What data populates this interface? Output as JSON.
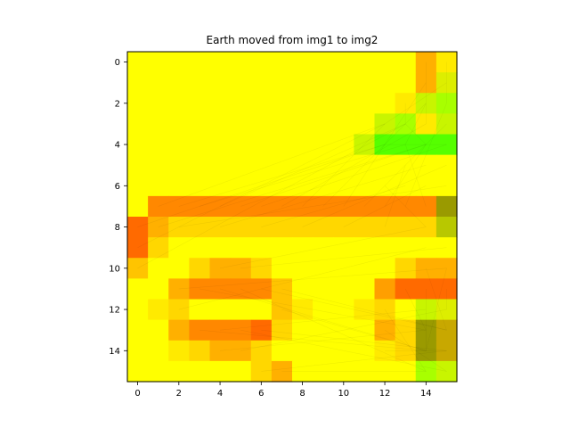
{
  "chart_data": {
    "type": "heatmap",
    "title": "Earth moved from img1 to img2",
    "xlabel": "",
    "ylabel": "",
    "rows": 16,
    "cols": 16,
    "x_ticks": [
      0,
      2,
      4,
      6,
      8,
      10,
      12,
      14
    ],
    "y_ticks": [
      0,
      2,
      4,
      6,
      8,
      10,
      12,
      14
    ],
    "x_tick_labels": [
      "0",
      "2",
      "4",
      "6",
      "8",
      "10",
      "12",
      "14"
    ],
    "y_tick_labels": [
      "0",
      "2",
      "4",
      "6",
      "8",
      "10",
      "12",
      "14"
    ],
    "xlim": [
      -0.5,
      15.5
    ],
    "ylim": [
      15.5,
      -0.5
    ],
    "grid": false,
    "legend": "none",
    "palette": {
      "Y": "#ffff00",
      "L": "#ffea00",
      "P": "#ffd700",
      "Q": "#ffc400",
      "O": "#ffb000",
      "o": "#ff9f00",
      "R": "#ff8800",
      "D": "#ff6a00",
      "g": "#ddee00",
      "h": "#c8f500",
      "G": "#a8ff00",
      "H": "#55ff00",
      "K": "#9a9a00",
      "k": "#c8a800",
      "n": "#b8c800"
    },
    "cells": [
      "YYYYYYYYYYYYYYOL",
      "YYYYYYYYYYYYYYOg",
      "YYYYYYYYYYYYYLhG",
      "YYYYYYYYYYYYhGLh",
      "YYYYYYYYYYYhHHHH",
      "YYYYYYYYYYYYYYYY",
      "YYYYYYYYYYYYYYYY",
      "YRRRRRRRRRRRRRRK",
      "DOPPPPPPPPPPPPPn",
      "DPYYYYYYYYYYYYYY",
      "QYYPOOPYYYYYYPOO",
      "YYORRRRQYYYYoDDD",
      "YLPYYYYQLYYLPYhg",
      "YYORRRDPYYYYOPKk",
      "YYLPOOPYYYYYLPKk",
      "YYYYYYPOYYYYYYGh"
    ],
    "flow_lines": [
      [
        0,
        14,
        3,
        14
      ],
      [
        1,
        14,
        4,
        12
      ],
      [
        2,
        14,
        4,
        13
      ],
      [
        3,
        13,
        4,
        14
      ],
      [
        4,
        12,
        4,
        15
      ],
      [
        0,
        15,
        2,
        15
      ],
      [
        1,
        15,
        3,
        12
      ],
      [
        2,
        13,
        3,
        13
      ],
      [
        3,
        12,
        4,
        11
      ],
      [
        7,
        1,
        3,
        12
      ],
      [
        7,
        2,
        4,
        12
      ],
      [
        7,
        3,
        4,
        13
      ],
      [
        7,
        4,
        3,
        13
      ],
      [
        7,
        5,
        4,
        14
      ],
      [
        7,
        6,
        4,
        15
      ],
      [
        7,
        7,
        3,
        14
      ],
      [
        7,
        8,
        4,
        11
      ],
      [
        7,
        9,
        2,
        14
      ],
      [
        7,
        10,
        4,
        12
      ],
      [
        7,
        11,
        3,
        15
      ],
      [
        7,
        12,
        4,
        14
      ],
      [
        7,
        13,
        2,
        15
      ],
      [
        7,
        14,
        4,
        13
      ],
      [
        8,
        0,
        4,
        12
      ],
      [
        9,
        0,
        3,
        12
      ],
      [
        8,
        1,
        4,
        14
      ],
      [
        10,
        0,
        3,
        13
      ],
      [
        8,
        2,
        6,
        15
      ],
      [
        8,
        4,
        5,
        14
      ],
      [
        8,
        6,
        6,
        13
      ],
      [
        8,
        8,
        5,
        15
      ],
      [
        8,
        10,
        6,
        14
      ],
      [
        8,
        12,
        5,
        13
      ],
      [
        8,
        14,
        6,
        12
      ],
      [
        11,
        3,
        13,
        14
      ],
      [
        11,
        4,
        14,
        14
      ],
      [
        11,
        5,
        15,
        14
      ],
      [
        11,
        6,
        13,
        15
      ],
      [
        13,
        3,
        14,
        14
      ],
      [
        13,
        4,
        12,
        14
      ],
      [
        13,
        5,
        15,
        15
      ],
      [
        13,
        6,
        14,
        15
      ],
      [
        11,
        13,
        13,
        14
      ],
      [
        11,
        14,
        14,
        14
      ],
      [
        11,
        15,
        12,
        15
      ],
      [
        10,
        14,
        13,
        15
      ],
      [
        10,
        15,
        14,
        14
      ],
      [
        12,
        12,
        15,
        14
      ],
      [
        13,
        12,
        15,
        15
      ],
      [
        14,
        12,
        14,
        15
      ],
      [
        10,
        4,
        8,
        14
      ],
      [
        10,
        5,
        9,
        15
      ],
      [
        14,
        4,
        13,
        14
      ],
      [
        14,
        5,
        12,
        15
      ],
      [
        15,
        6,
        14,
        15
      ],
      [
        15,
        7,
        15,
        14
      ],
      [
        12,
        7,
        14,
        14
      ],
      [
        11,
        7,
        13,
        15
      ],
      [
        12,
        2,
        9,
        14
      ],
      [
        11,
        2,
        10,
        15
      ]
    ]
  }
}
